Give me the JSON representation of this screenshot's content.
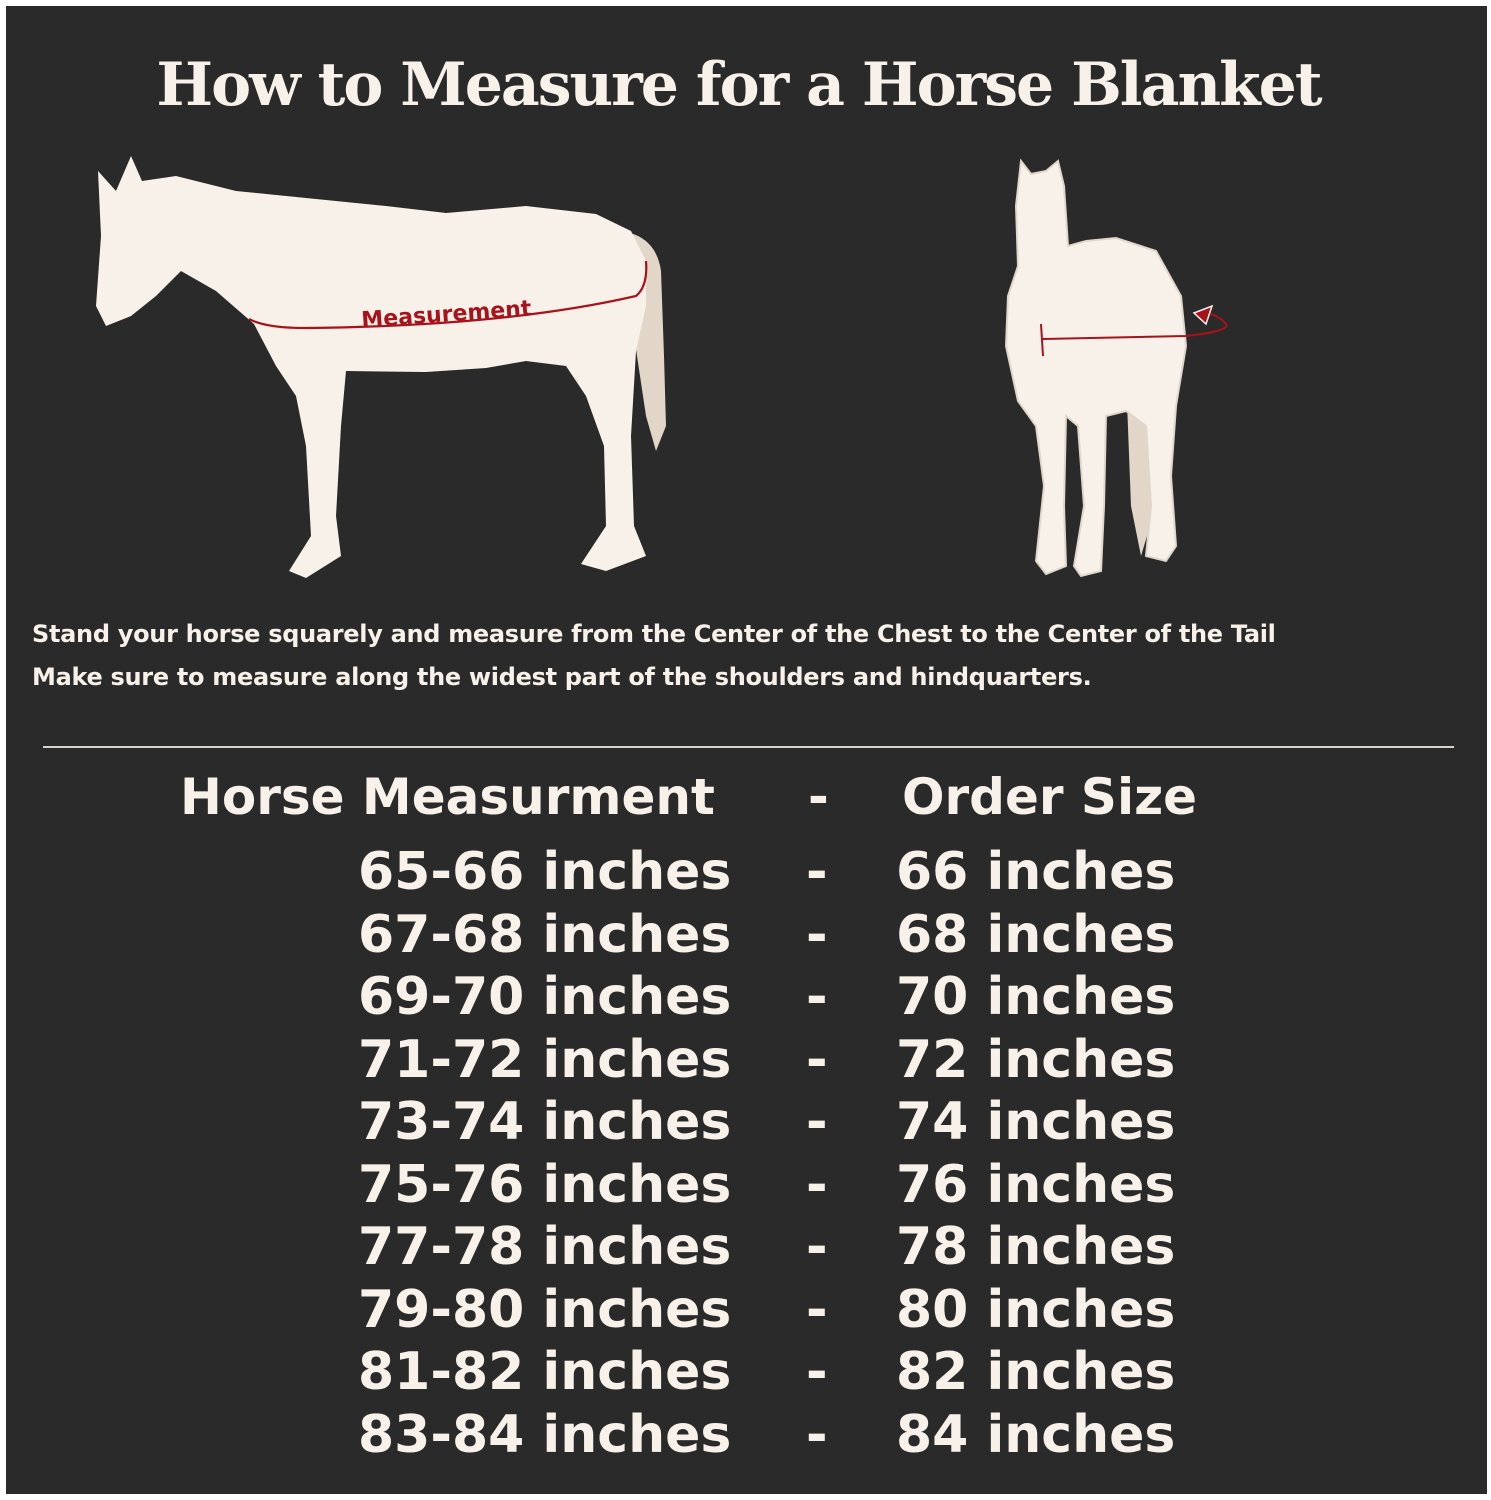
{
  "title": "How to Measure for a Horse Blanket",
  "diagram": {
    "side_label": "Measurement",
    "colors": {
      "background": "#2b2a2b",
      "horse": "#f7f1ea",
      "tail": "#e2d6c8",
      "measure_line": "#a8121a"
    }
  },
  "instructions": [
    "Stand your horse squarely and measure from the Center of the Chest to the Center of the Tail",
    "Make sure to measure along the widest part of the shoulders and hindquarters."
  ],
  "table": {
    "headers": {
      "measurement": "Horse Measurment",
      "separator": "-",
      "order": "Order Size"
    },
    "rows": [
      {
        "measurement": "65-66 inches",
        "separator": "-",
        "order": "66 inches"
      },
      {
        "measurement": "67-68 inches",
        "separator": "-",
        "order": "68 inches"
      },
      {
        "measurement": "69-70 inches",
        "separator": "-",
        "order": "70 inches"
      },
      {
        "measurement": "71-72 inches",
        "separator": "-",
        "order": "72 inches"
      },
      {
        "measurement": "73-74 inches",
        "separator": "-",
        "order": "74 inches"
      },
      {
        "measurement": "75-76 inches",
        "separator": "-",
        "order": "76 inches"
      },
      {
        "measurement": "77-78 inches",
        "separator": "-",
        "order": "78 inches"
      },
      {
        "measurement": "79-80 inches",
        "separator": "-",
        "order": "80 inches"
      },
      {
        "measurement": "81-82 inches",
        "separator": "-",
        "order": "82 inches"
      },
      {
        "measurement": "83-84 inches",
        "separator": "-",
        "order": "84 inches"
      }
    ]
  }
}
